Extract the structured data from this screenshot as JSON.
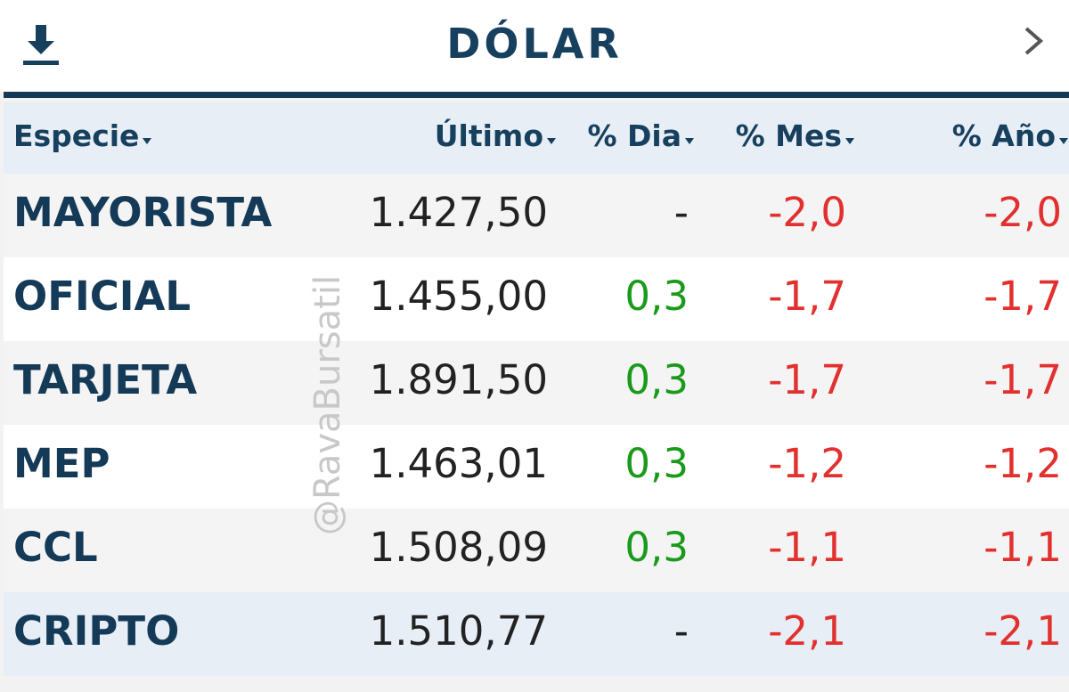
{
  "header": {
    "title": "DÓLAR"
  },
  "table": {
    "columns": [
      "Especie",
      "Último",
      "% Dia",
      "% Mes",
      "% Año"
    ],
    "rows": [
      [
        "MAYORISTA",
        "1.427,50",
        "-",
        "-2,0",
        "-2,0"
      ],
      [
        "OFICIAL",
        "1.455,00",
        "0,3",
        "-1,7",
        "-1,7"
      ],
      [
        "TARJETA",
        "1.891,50",
        "0,3",
        "-1,7",
        "-1,7"
      ],
      [
        "MEP",
        "1.463,01",
        "0,3",
        "-1,2",
        "-1,2"
      ],
      [
        "CCL",
        "1.508,09",
        "0,3",
        "-1,1",
        "-1,1"
      ],
      [
        "CRIPTO",
        "1.510,77",
        "-",
        "-2,1",
        "-2,1"
      ]
    ]
  },
  "watermark": "@RavaBursatil"
}
